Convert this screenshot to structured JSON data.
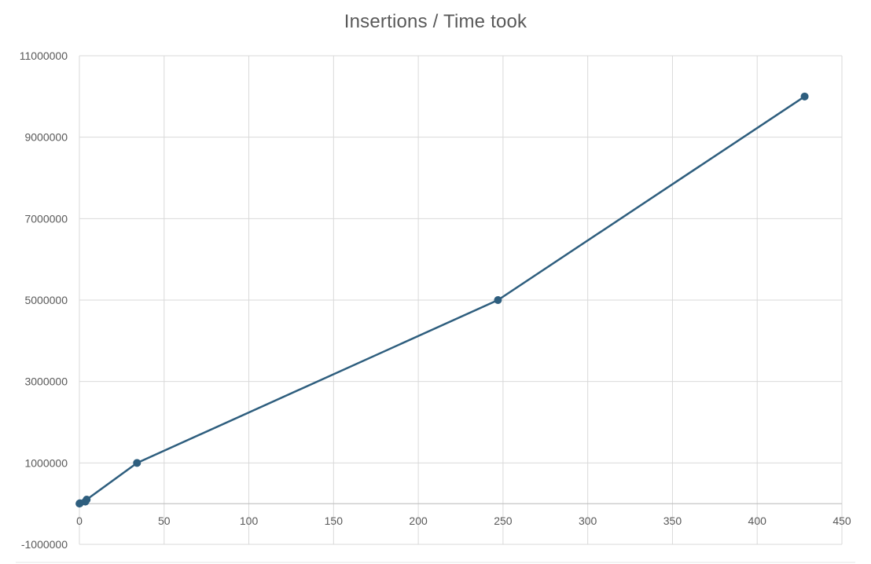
{
  "chart_data": {
    "type": "scatter",
    "title": "Insertions / Time took",
    "xlabel": "",
    "ylabel": "",
    "xlim": [
      0,
      450
    ],
    "ylim": [
      -1000000,
      11000000
    ],
    "x_ticks": [
      0,
      50,
      100,
      150,
      200,
      250,
      300,
      350,
      400,
      450
    ],
    "y_ticks": [
      -1000000,
      1000000,
      3000000,
      5000000,
      7000000,
      9000000,
      11000000
    ],
    "x_tick_labels": [
      "0",
      "50",
      "100",
      "150",
      "200",
      "250",
      "300",
      "350",
      "400",
      "450"
    ],
    "y_tick_labels": [
      "-1000000",
      "1000000",
      "3000000",
      "5000000",
      "7000000",
      "9000000",
      "11000000"
    ],
    "grid": true,
    "legend": "none",
    "series": [
      {
        "color": "#2e5e7e",
        "markers": true,
        "line": true,
        "points": [
          {
            "x": 0.05,
            "y": 1000
          },
          {
            "x": 0.3,
            "y": 10000
          },
          {
            "x": 3.5,
            "y": 50000
          },
          {
            "x": 4.3,
            "y": 100000
          },
          {
            "x": 34,
            "y": 1000000
          },
          {
            "x": 247,
            "y": 5000000
          },
          {
            "x": 428,
            "y": 10000000
          }
        ]
      }
    ]
  }
}
